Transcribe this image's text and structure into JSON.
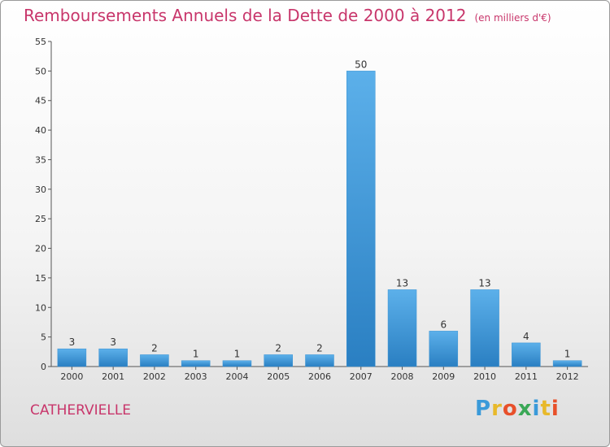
{
  "title": "Remboursements Annuels de la Dette de 2000 à 2012",
  "subtitle": "(en milliers d'€)",
  "commune": "CATHERVIELLE",
  "logo": {
    "letters": [
      "P",
      "r",
      "o",
      "x",
      "i",
      "t",
      "i"
    ],
    "colors": [
      "#3a9ad9",
      "#e8b92a",
      "#e8502a",
      "#3aa856",
      "#3a9ad9",
      "#e8b92a",
      "#e8502a"
    ]
  },
  "colors": {
    "bar": "#3a93d4",
    "bar_light": "#5cb0ea",
    "title": "#c8366b"
  },
  "chart_data": {
    "type": "bar",
    "categories": [
      "2000",
      "2001",
      "2002",
      "2003",
      "2004",
      "2005",
      "2006",
      "2007",
      "2008",
      "2009",
      "2010",
      "2011",
      "2012"
    ],
    "values": [
      3,
      3,
      2,
      1,
      1,
      2,
      2,
      50,
      13,
      6,
      13,
      4,
      1
    ],
    "ylim": [
      0,
      55
    ],
    "yticks": [
      0,
      5,
      10,
      15,
      20,
      25,
      30,
      35,
      40,
      45,
      50,
      55
    ],
    "grid": false,
    "legend": "none"
  }
}
